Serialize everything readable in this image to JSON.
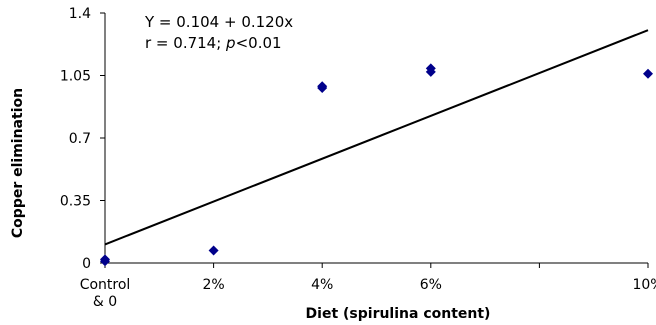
{
  "chart_data": {
    "type": "scatter",
    "xlabel": "Diet (spirulina content)",
    "ylabel": "Copper elimination",
    "ylim": [
      0,
      1.4
    ],
    "y_ticks": [
      {
        "value": 0,
        "label": "0"
      },
      {
        "value": 0.35,
        "label": "0.35"
      },
      {
        "value": 0.7,
        "label": "0.7"
      },
      {
        "value": 1.05,
        "label": "1.05"
      },
      {
        "value": 1.4,
        "label": "1.4"
      }
    ],
    "xlim": [
      0,
      10
    ],
    "x_ticks": [
      {
        "value": 0,
        "lines": [
          "Control",
          "& 0"
        ]
      },
      {
        "value": 2,
        "lines": [
          "2%"
        ]
      },
      {
        "value": 4,
        "lines": [
          "4%"
        ]
      },
      {
        "value": 6,
        "lines": [
          "6%"
        ]
      },
      {
        "value": 10,
        "lines": [
          "10%"
        ]
      }
    ],
    "x_minor_ticks": [
      8
    ],
    "points": [
      {
        "x": 0,
        "y": 0.01
      },
      {
        "x": 0,
        "y": 0.02
      },
      {
        "x": 2,
        "y": 0.07
      },
      {
        "x": 4,
        "y": 0.98
      },
      {
        "x": 4,
        "y": 0.99
      },
      {
        "x": 6,
        "y": 1.07
      },
      {
        "x": 6,
        "y": 1.09
      },
      {
        "x": 10,
        "y": 1.06
      }
    ],
    "regression": {
      "intercept": 0.104,
      "slope": 0.12
    },
    "annotation": {
      "equation": "Y = 0.104 + 0.120x",
      "r_text": "r  = 0.714; ",
      "p_italic": "p",
      "p_rest": "<0.01"
    },
    "colors": {
      "points": "#00008B",
      "line": "#000000"
    },
    "grid": false,
    "legend": "none"
  }
}
